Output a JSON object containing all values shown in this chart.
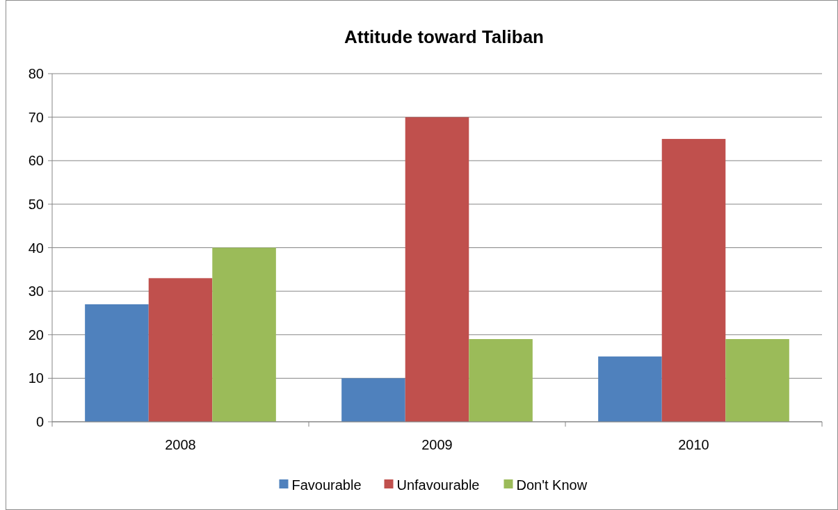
{
  "chart_data": {
    "type": "bar",
    "title": "Attitude toward Taliban",
    "categories": [
      "2008",
      "2009",
      "2010"
    ],
    "series": [
      {
        "name": "Favourable",
        "color": "#4f81bd",
        "values": [
          27,
          10,
          15
        ]
      },
      {
        "name": "Unfavourable",
        "color": "#c0504d",
        "values": [
          33,
          70,
          65
        ]
      },
      {
        "name": "Don't Know",
        "color": "#9bbb59",
        "values": [
          40,
          19,
          19
        ]
      }
    ],
    "ylim": [
      0,
      80
    ],
    "yticks": [
      0,
      10,
      20,
      30,
      40,
      50,
      60,
      70,
      80
    ],
    "grid": "y",
    "legend": "bottom"
  }
}
